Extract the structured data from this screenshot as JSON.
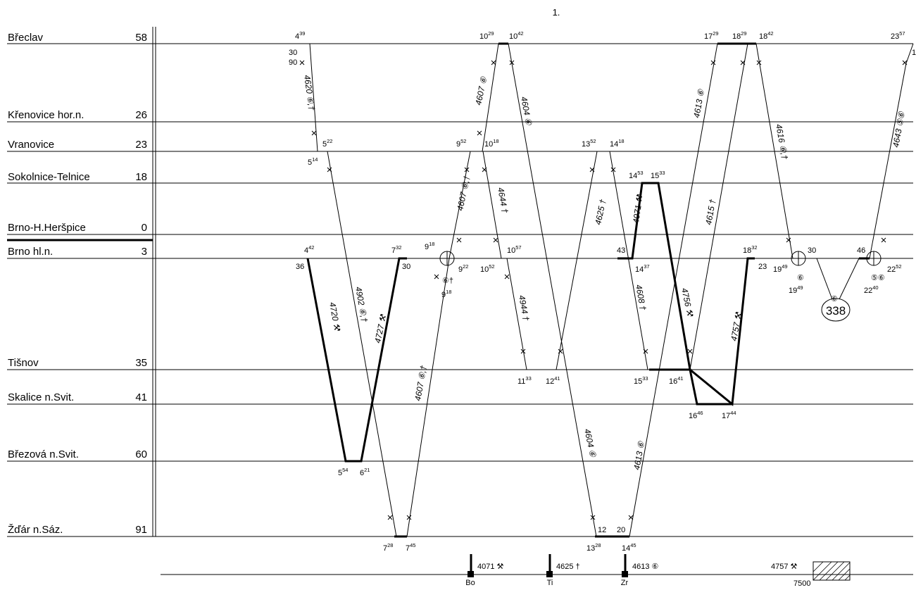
{
  "page_number": "1.",
  "stations": [
    {
      "id": "breclav",
      "name": "Břeclav",
      "km": "58"
    },
    {
      "id": "krenovice",
      "name": "Křenovice hor.n.",
      "km": "26"
    },
    {
      "id": "vranovice",
      "name": "Vranovice",
      "km": "23"
    },
    {
      "id": "sokolnice",
      "name": "Sokolnice-Telnice",
      "km": "18"
    },
    {
      "id": "herspice",
      "name": "Brno-H.Heršpice",
      "km": "0"
    },
    {
      "id": "brno",
      "name": "Brno hl.n.",
      "km": "3"
    },
    {
      "id": "tisnov",
      "name": "Tišnov",
      "km": "35"
    },
    {
      "id": "skalice",
      "name": "Skalice n.Svit.",
      "km": "41"
    },
    {
      "id": "brezova",
      "name": "Březová n.Svit.",
      "km": "60"
    },
    {
      "id": "zdar",
      "name": "Žďár n.Sáz.",
      "km": "91"
    }
  ],
  "times": [
    {
      "h": "4",
      "m": "39"
    },
    {
      "h": "10",
      "m": "29"
    },
    {
      "h": "10",
      "m": "42"
    },
    {
      "h": "17",
      "m": "29"
    },
    {
      "h": "18",
      "m": "29"
    },
    {
      "h": "18",
      "m": "42"
    },
    {
      "h": "23",
      "m": "57"
    },
    {
      "h": "5",
      "m": "22"
    },
    {
      "h": "5",
      "m": "14"
    },
    {
      "h": "9",
      "m": "52"
    },
    {
      "h": "10",
      "m": "18"
    },
    {
      "h": "13",
      "m": "52"
    },
    {
      "h": "14",
      "m": "18"
    },
    {
      "h": "14",
      "m": "53"
    },
    {
      "h": "15",
      "m": "33"
    },
    {
      "h": "4",
      "m": "42"
    },
    {
      "h": "7",
      "m": "32"
    },
    {
      "h": "9",
      "m": "18"
    },
    {
      "h": "10",
      "m": "57"
    },
    {
      "h": "18",
      "m": "32"
    },
    {
      "h": "9",
      "m": "22"
    },
    {
      "h": "10",
      "m": "52"
    },
    {
      "h": "14",
      "m": "37"
    },
    {
      "h": "19",
      "m": "49"
    },
    {
      "h": "22",
      "m": "52"
    },
    {
      "h": "9",
      "m": "18"
    },
    {
      "h": "19",
      "m": "49"
    },
    {
      "h": "22",
      "m": "40"
    },
    {
      "h": "11",
      "m": "33"
    },
    {
      "h": "12",
      "m": "41"
    },
    {
      "h": "15",
      "m": "33"
    },
    {
      "h": "16",
      "m": "41"
    },
    {
      "h": "16",
      "m": "46"
    },
    {
      "h": "17",
      "m": "44"
    },
    {
      "h": "5",
      "m": "54"
    },
    {
      "h": "6",
      "m": "21"
    },
    {
      "h": "7",
      "m": "28"
    },
    {
      "h": "7",
      "m": "45"
    },
    {
      "h": "13",
      "m": "28"
    },
    {
      "h": "14",
      "m": "45"
    }
  ],
  "minute_marks": [
    "30",
    "90",
    "36",
    "30",
    "43",
    "23",
    "30",
    "46",
    "12",
    "20",
    "1"
  ],
  "train_labels": [
    "4620 ⑥,†",
    "4607 ⑥",
    "4604 ⑥",
    "4613 ⑥",
    "4616 ⑥,†",
    "4643 ⑤⑥",
    "4607 ⑥,†",
    "4644 †",
    "4625 †",
    "4071 ⚒",
    "4615 †",
    "4720 ⚒",
    "4902 ⑥,†",
    "4727 ⚒",
    "4944 †",
    "4608 †",
    "4756 ⚒",
    "4757 ⚒",
    "4607 ⑥,†",
    "4604 ⑥",
    "4613 ⑥"
  ],
  "circle_notes": [
    "⑥†",
    "⑥",
    "⑤⑥",
    "⑥"
  ],
  "circle_number": "338",
  "legend": [
    {
      "train": "4071 ⚒",
      "code": "Bo"
    },
    {
      "train": "4625 †",
      "code": "Ti"
    },
    {
      "train": "4613 ⑥",
      "code": "Zr"
    },
    {
      "train": "4757 ⚒",
      "code": "7500"
    }
  ]
}
